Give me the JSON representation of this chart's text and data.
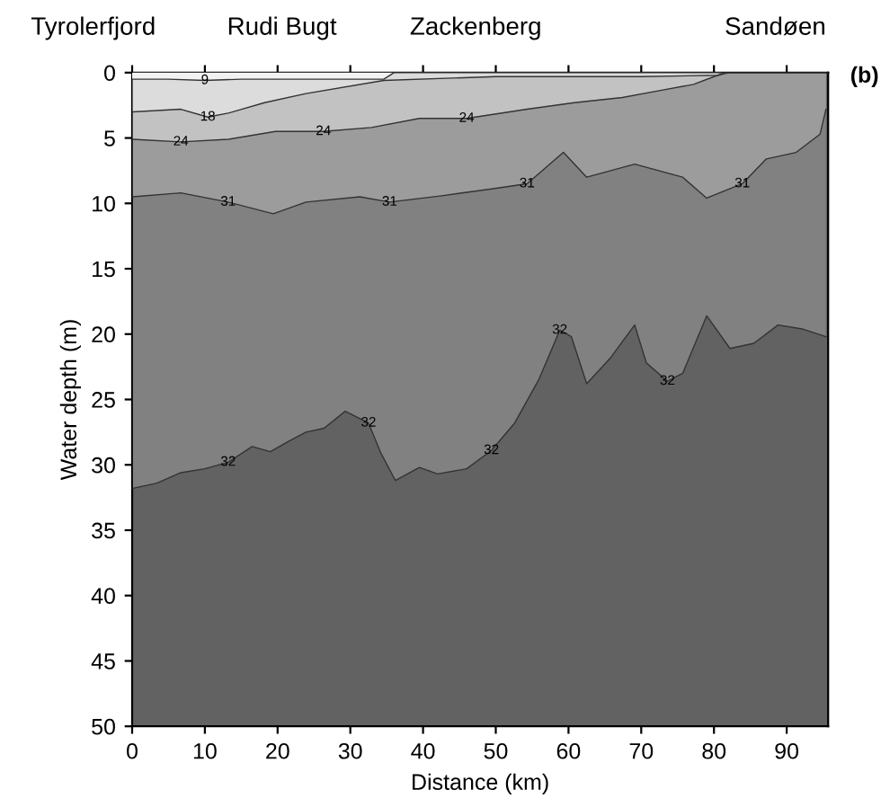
{
  "chart_data": {
    "type": "area",
    "xlabel": "Distance (km)",
    "ylabel": "Water depth (m)",
    "xlim": [
      0,
      95.7
    ],
    "xticks": [
      0,
      10,
      20,
      30,
      40,
      50,
      60,
      70,
      80,
      90
    ],
    "ylim": [
      50,
      0
    ],
    "yticks": [
      0,
      5,
      10,
      15,
      20,
      25,
      30,
      35,
      40,
      45,
      50
    ],
    "grid": false,
    "legend": false,
    "series": [
      {
        "color": "#f2f2f2",
        "x": [
          0,
          5,
          10,
          15,
          20,
          25,
          30,
          34.6,
          36,
          95.7
        ],
        "values": [
          0.5,
          0.5,
          0.6,
          0.5,
          0.5,
          0.5,
          0.5,
          0.5,
          0,
          0
        ]
      },
      {
        "color": "#dcdcdc",
        "x": [
          0.1,
          6.7,
          10.4,
          13.2,
          18.2,
          23.9,
          34.6,
          50,
          70,
          80.6,
          82,
          95.7
        ],
        "values": [
          3.0,
          2.8,
          3.4,
          3.1,
          2.3,
          1.6,
          0.6,
          0.3,
          0.3,
          0.2,
          0,
          0
        ]
      },
      {
        "color": "#c2c2c2",
        "x": [
          0.1,
          6.7,
          13.2,
          19.7,
          26.3,
          32.9,
          39.5,
          46.0,
          54.3,
          60.8,
          67.4,
          72.3,
          77.2,
          80.5,
          81.4,
          95.7
        ],
        "values": [
          5.1,
          5.3,
          5.1,
          4.5,
          4.5,
          4.2,
          3.5,
          3.5,
          2.8,
          2.3,
          1.9,
          1.4,
          0.9,
          0.2,
          0,
          0
        ]
      },
      {
        "color": "#9c9c9c",
        "x": [
          0.1,
          6.7,
          13.2,
          19.4,
          23.9,
          31.3,
          35.4,
          42.8,
          49.4,
          54.3,
          59.3,
          62.5,
          69.1,
          75.7,
          79.0,
          83.9,
          87.2,
          91.3,
          94.6,
          95.4
        ],
        "values": [
          9.5,
          9.2,
          9.9,
          10.8,
          9.9,
          9.5,
          9.9,
          9.4,
          8.9,
          8.5,
          6.1,
          8.0,
          7.0,
          8.0,
          9.6,
          8.5,
          6.6,
          6.1,
          4.7,
          2.8
        ]
      },
      {
        "color": "#818181",
        "x": [
          0.1,
          3.4,
          6.7,
          10.0,
          13.2,
          16.5,
          19.0,
          21.5,
          23.9,
          26.4,
          29.3,
          32.5,
          34.2,
          36.2,
          39.5,
          42.0,
          46.0,
          49.4,
          52.6,
          55.9,
          58.8,
          60.4,
          62.5,
          65.8,
          69.1,
          70.7,
          73.6,
          75.7,
          79.0,
          82.2,
          85.5,
          88.8,
          92.1,
          95.4
        ],
        "values": [
          31.8,
          31.4,
          30.6,
          30.3,
          29.8,
          28.6,
          29.0,
          28.2,
          27.5,
          27.2,
          25.9,
          26.8,
          29.1,
          31.2,
          30.2,
          30.7,
          30.3,
          28.9,
          26.8,
          23.5,
          19.7,
          20.2,
          23.8,
          21.8,
          19.3,
          22.2,
          23.6,
          23.0,
          18.6,
          21.1,
          20.7,
          19.3,
          19.6,
          20.2
        ]
      }
    ],
    "annotations": [
      "Tyrolerfjord",
      "Rudi Bugt",
      "Zackenberg",
      "Sandøen",
      "(b)",
      {
        "text": "9",
        "x": 10,
        "y": 0.6
      },
      {
        "text": "18",
        "x": 10.4,
        "y": 3.4
      },
      {
        "text": "24",
        "x": 6.7,
        "y": 5.3
      },
      {
        "text": "24",
        "x": 26.3,
        "y": 4.5
      },
      {
        "text": "24",
        "x": 46.0,
        "y": 3.5
      },
      {
        "text": "31",
        "x": 13.2,
        "y": 9.9
      },
      {
        "text": "31",
        "x": 35.4,
        "y": 9.9
      },
      {
        "text": "31",
        "x": 54.3,
        "y": 8.5
      },
      {
        "text": "31",
        "x": 83.9,
        "y": 8.5
      },
      {
        "text": "32",
        "x": 13.2,
        "y": 29.8
      },
      {
        "text": "32",
        "x": 32.5,
        "y": 26.8
      },
      {
        "text": "32",
        "x": 49.4,
        "y": 28.9
      },
      {
        "text": "32",
        "x": 58.8,
        "y": 19.7
      },
      {
        "text": "32",
        "x": 73.6,
        "y": 23.6
      }
    ]
  }
}
